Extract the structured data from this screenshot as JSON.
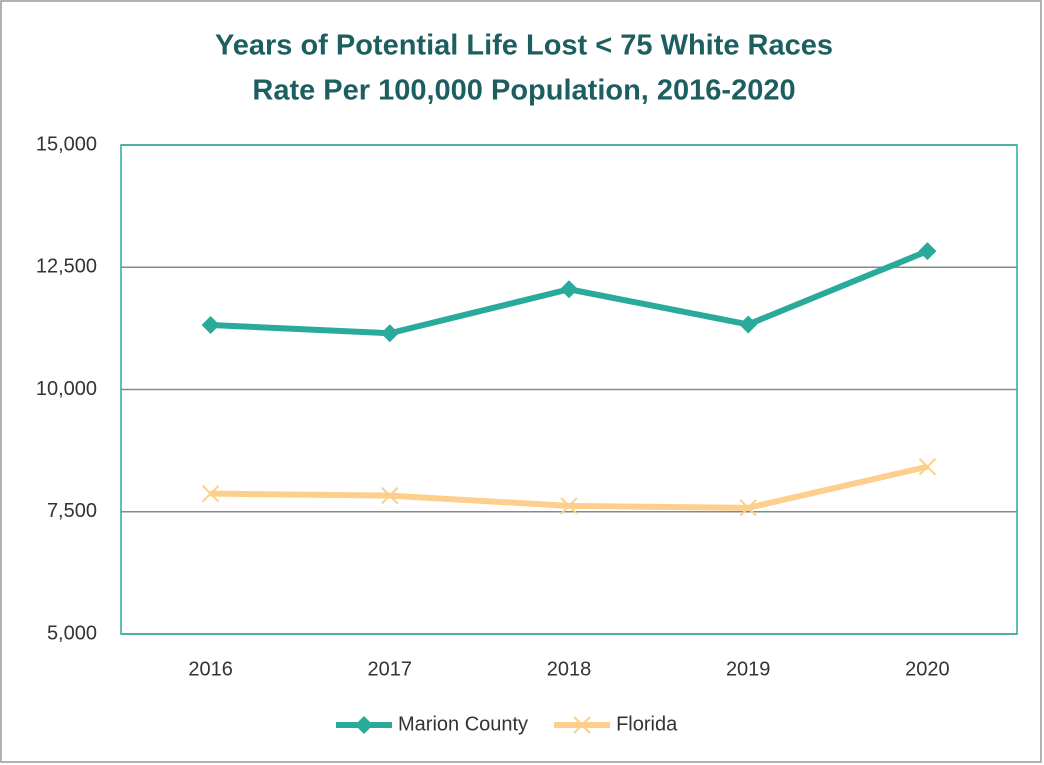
{
  "chart_data": {
    "type": "line",
    "title": [
      "Years of Potential Life Lost < 75 White Races",
      "Rate Per 100,000 Population, 2016-2020"
    ],
    "categories": [
      "2016",
      "2017",
      "2018",
      "2019",
      "2020"
    ],
    "series": [
      {
        "name": "Marion County",
        "color": "#2aaa9a",
        "marker": "diamond",
        "values": [
          11320,
          11150,
          12050,
          11330,
          12830
        ]
      },
      {
        "name": "Florida",
        "color": "#fcd08c",
        "marker": "x",
        "values": [
          7870,
          7830,
          7620,
          7580,
          8420
        ]
      }
    ],
    "ylim": [
      5000,
      15000
    ],
    "yticks": [
      {
        "value": 5000,
        "label": "5,000"
      },
      {
        "value": 7500,
        "label": "7,500"
      },
      {
        "value": 10000,
        "label": "10,000"
      },
      {
        "value": 12500,
        "label": "12,500"
      },
      {
        "value": 15000,
        "label": "15,000"
      }
    ],
    "grid": true,
    "legend": "bottom"
  }
}
